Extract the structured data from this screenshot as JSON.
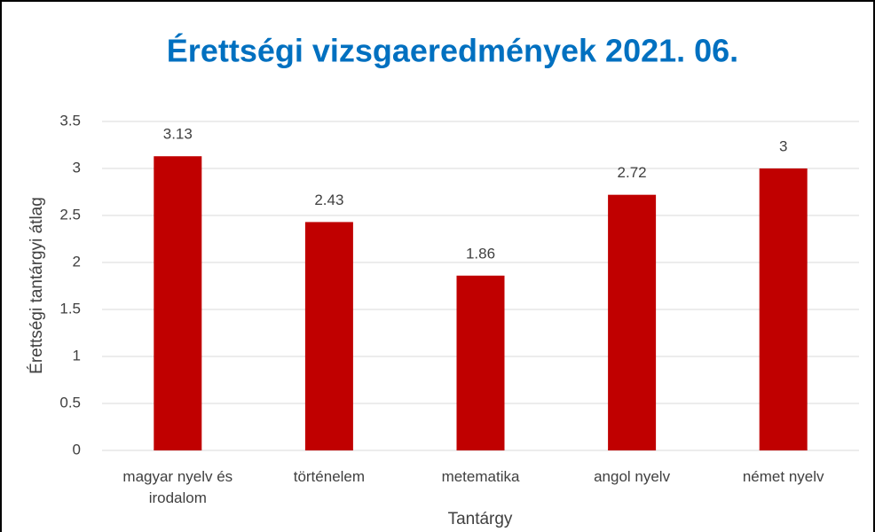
{
  "chart_data": {
    "type": "bar",
    "title": "Érettségi vizsgaeredmények 2021. 06.",
    "x_label": "Tantárgy",
    "y_label": "Érettségi tantárgyi átlag",
    "categories": [
      "magyar nyelv és irodalom",
      "történelem",
      "metematika",
      "angol nyelv",
      "német nyelv"
    ],
    "values": [
      3.13,
      2.43,
      1.86,
      2.72,
      3
    ],
    "color": "#c00000",
    "ylim": [
      0,
      3.5
    ],
    "yticks": [
      0,
      0.5,
      1,
      1.5,
      2,
      2.5,
      3,
      3.5
    ],
    "grid": true
  }
}
